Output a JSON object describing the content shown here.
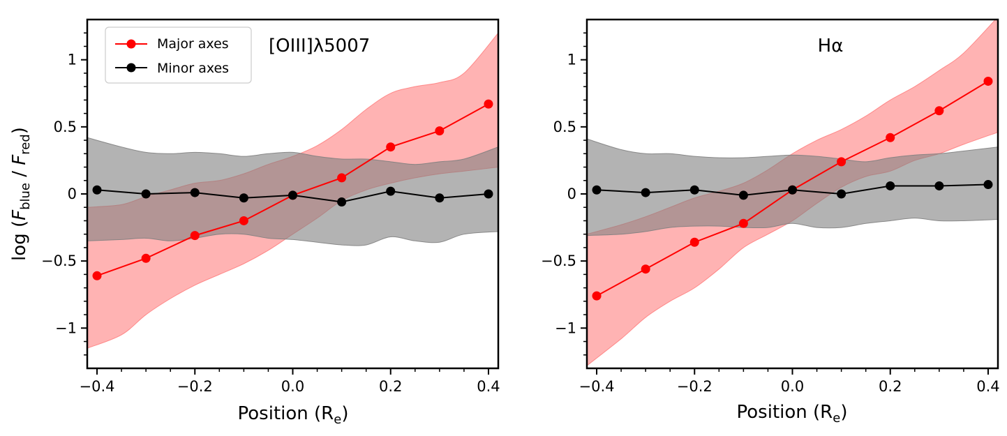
{
  "chart_data": [
    {
      "type": "line",
      "panel": "left",
      "title": "[OIII]λ5007",
      "xlabel": "Position (R",
      "xlabel_sub": "e",
      "xlabel_end": ")",
      "ylabel": "log (",
      "ylabel_f1": "F",
      "ylabel_sub1": "blue",
      "ylabel_sep": " / ",
      "ylabel_f2": "F",
      "ylabel_sub2": "red",
      "ylabel_end": ")",
      "xlim": [
        -0.42,
        0.42
      ],
      "ylim": [
        -1.3,
        1.3
      ],
      "x_ticks": [
        "−0.4",
        "−0.2",
        "0.0",
        "0.2",
        "0.4"
      ],
      "y_ticks": [
        "1",
        "0.5",
        "0",
        "−0.5",
        "−1"
      ],
      "legend": {
        "position": "top-left",
        "entries": [
          "Major axes",
          "Minor axes"
        ]
      },
      "x": [
        -0.4,
        -0.3,
        -0.2,
        -0.1,
        0.0,
        0.1,
        0.2,
        0.3,
        0.4
      ],
      "series": [
        {
          "name": "Major axes",
          "color": "#ff0000",
          "band_color": "#ff8080",
          "values": [
            -0.61,
            -0.48,
            -0.31,
            -0.2,
            -0.01,
            0.12,
            0.35,
            0.47,
            0.67
          ],
          "band_x": [
            -0.42,
            -0.35,
            -0.3,
            -0.25,
            -0.2,
            -0.15,
            -0.1,
            -0.05,
            0.0,
            0.05,
            0.1,
            0.15,
            0.2,
            0.25,
            0.3,
            0.35,
            0.42
          ],
          "band_upper": [
            -0.1,
            -0.08,
            -0.02,
            0.03,
            0.08,
            0.1,
            0.15,
            0.22,
            0.28,
            0.36,
            0.48,
            0.63,
            0.75,
            0.8,
            0.83,
            0.9,
            1.2
          ],
          "band_lower": [
            -1.15,
            -1.05,
            -0.9,
            -0.78,
            -0.68,
            -0.6,
            -0.52,
            -0.42,
            -0.3,
            -0.18,
            -0.05,
            0.03,
            0.08,
            0.12,
            0.15,
            0.17,
            0.2
          ]
        },
        {
          "name": "Minor axes",
          "color": "#000000",
          "band_color": "#808080",
          "values": [
            0.03,
            0.0,
            0.01,
            -0.03,
            -0.01,
            -0.06,
            0.02,
            -0.03,
            0.0
          ],
          "band_x": [
            -0.42,
            -0.35,
            -0.3,
            -0.25,
            -0.2,
            -0.15,
            -0.1,
            -0.05,
            0.0,
            0.05,
            0.1,
            0.15,
            0.2,
            0.25,
            0.3,
            0.35,
            0.42
          ],
          "band_upper": [
            0.42,
            0.35,
            0.31,
            0.3,
            0.31,
            0.3,
            0.28,
            0.3,
            0.31,
            0.28,
            0.26,
            0.26,
            0.24,
            0.22,
            0.24,
            0.26,
            0.35
          ],
          "band_lower": [
            -0.35,
            -0.34,
            -0.33,
            -0.35,
            -0.33,
            -0.3,
            -0.3,
            -0.33,
            -0.34,
            -0.36,
            -0.38,
            -0.38,
            -0.32,
            -0.35,
            -0.36,
            -0.3,
            -0.28
          ]
        }
      ]
    },
    {
      "type": "line",
      "panel": "right",
      "title": "Hα",
      "xlabel": "Position (R",
      "xlabel_sub": "e",
      "xlabel_end": ")",
      "xlim": [
        -0.42,
        0.42
      ],
      "ylim": [
        -1.3,
        1.3
      ],
      "x_ticks": [
        "−0.4",
        "−0.2",
        "0.0",
        "0.2",
        "0.4"
      ],
      "y_ticks": [
        "1",
        "0.5",
        "0",
        "−0.5",
        "−1"
      ],
      "x": [
        -0.4,
        -0.3,
        -0.2,
        -0.1,
        0.0,
        0.1,
        0.2,
        0.3,
        0.4
      ],
      "series": [
        {
          "name": "Major axes",
          "color": "#ff0000",
          "band_color": "#ff8080",
          "values": [
            -0.76,
            -0.56,
            -0.36,
            -0.22,
            0.03,
            0.24,
            0.42,
            0.62,
            0.84
          ],
          "band_x": [
            -0.42,
            -0.35,
            -0.3,
            -0.25,
            -0.2,
            -0.15,
            -0.1,
            -0.05,
            0.0,
            0.05,
            0.1,
            0.15,
            0.2,
            0.25,
            0.3,
            0.35,
            0.42
          ],
          "band_upper": [
            -0.3,
            -0.23,
            -0.17,
            -0.1,
            -0.03,
            0.02,
            0.08,
            0.18,
            0.3,
            0.4,
            0.48,
            0.58,
            0.7,
            0.8,
            0.92,
            1.05,
            1.32
          ],
          "band_lower": [
            -1.28,
            -1.08,
            -0.92,
            -0.8,
            -0.7,
            -0.56,
            -0.4,
            -0.3,
            -0.2,
            -0.07,
            0.05,
            0.13,
            0.17,
            0.25,
            0.3,
            0.37,
            0.46
          ]
        },
        {
          "name": "Minor axes",
          "color": "#000000",
          "band_color": "#808080",
          "values": [
            0.03,
            0.01,
            0.03,
            -0.01,
            0.03,
            0.0,
            0.06,
            0.06,
            0.07
          ],
          "band_x": [
            -0.42,
            -0.35,
            -0.3,
            -0.25,
            -0.2,
            -0.15,
            -0.1,
            -0.05,
            0.0,
            0.05,
            0.1,
            0.15,
            0.2,
            0.25,
            0.3,
            0.35,
            0.42
          ],
          "band_upper": [
            0.41,
            0.33,
            0.3,
            0.3,
            0.28,
            0.27,
            0.27,
            0.28,
            0.29,
            0.28,
            0.26,
            0.24,
            0.27,
            0.29,
            0.3,
            0.32,
            0.35
          ],
          "band_lower": [
            -0.31,
            -0.3,
            -0.28,
            -0.25,
            -0.24,
            -0.24,
            -0.25,
            -0.25,
            -0.22,
            -0.25,
            -0.25,
            -0.22,
            -0.2,
            -0.18,
            -0.2,
            -0.2,
            -0.19
          ]
        }
      ]
    }
  ]
}
